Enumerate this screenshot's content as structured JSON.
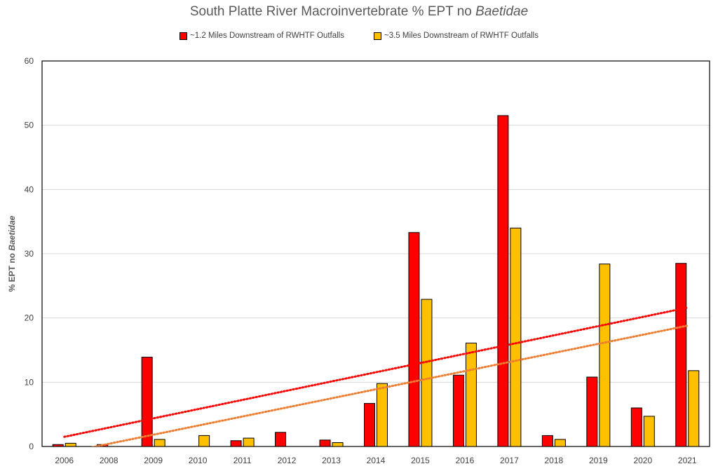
{
  "chart_data": {
    "type": "bar",
    "title": "South Platte River Macroinvertebrate % EPT no",
    "title_italic": "Baetidae",
    "ylabel": "% EPT no",
    "ylabel_italic": "Baetidae",
    "ylim": [
      0,
      60
    ],
    "yticks": [
      0,
      10,
      20,
      30,
      40,
      50,
      60
    ],
    "grid": true,
    "legend_position": "top-center",
    "categories": [
      "2006",
      "2008",
      "2009",
      "2010",
      "2011",
      "2012",
      "2013",
      "2014",
      "2015",
      "2016",
      "2017",
      "2018",
      "2019",
      "2020",
      "2021"
    ],
    "series": [
      {
        "name": "~1.2 Miles Downstream of RWHTF Outfalls",
        "color": "#ff0000",
        "trend_color": "#ff0000",
        "values": [
          0.3,
          0.3,
          13.9,
          0,
          0.9,
          2.2,
          1.0,
          6.7,
          33.3,
          11.1,
          51.5,
          1.7,
          10.8,
          6.0,
          28.5
        ],
        "trendline": [
          1.5,
          21.6
        ]
      },
      {
        "name": "~3.5 Miles Downstream of RWHTF Outfalls",
        "color": "#ffc000",
        "trend_color": "#ed7d31",
        "values": [
          0.5,
          null,
          1.1,
          1.7,
          1.3,
          null,
          0.6,
          9.8,
          22.9,
          16.1,
          34.0,
          1.1,
          28.4,
          4.7,
          11.8
        ],
        "trendline": [
          -1.0,
          18.8
        ]
      }
    ]
  }
}
